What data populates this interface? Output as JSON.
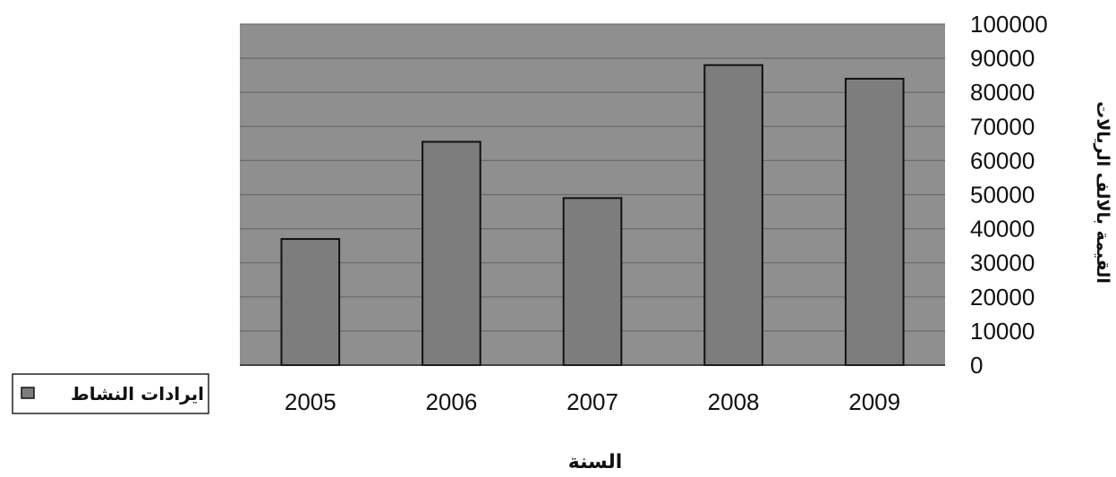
{
  "colors": {
    "plot_background": "#8f8f8f",
    "bar_fill": "#7d7d7d",
    "bar_stroke": "#111111",
    "gridline": "#6a6a6a"
  },
  "chart_data": {
    "type": "bar",
    "categories": [
      "2005",
      "2006",
      "2007",
      "2008",
      "2009"
    ],
    "series": [
      {
        "name": "ايرادات النشاط",
        "values": [
          37000,
          65500,
          49000,
          88000,
          84000
        ]
      }
    ],
    "title": "",
    "xlabel": "السنة",
    "ylabel": "القيمة بالالف الريالات",
    "ylim": [
      0,
      100000
    ],
    "yticks": [
      "0",
      "10000",
      "20000",
      "30000",
      "40000",
      "50000",
      "60000",
      "70000",
      "80000",
      "90000",
      "100000"
    ],
    "y_axis_side": "right",
    "grid": true,
    "legend_position": "left"
  }
}
